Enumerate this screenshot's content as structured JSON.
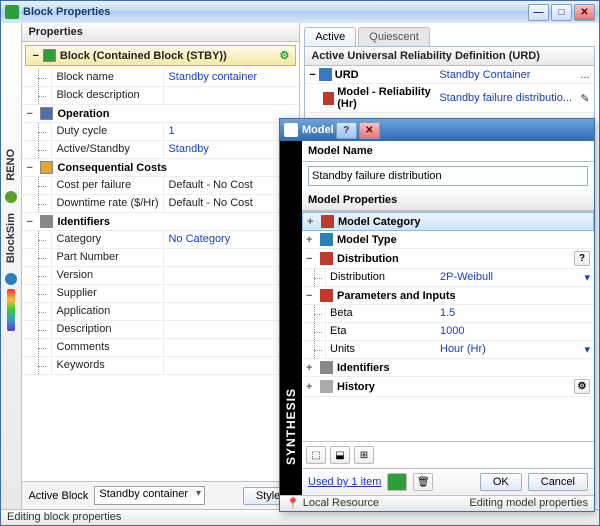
{
  "window": {
    "title": "Block Properties"
  },
  "sidebar": {
    "labels": [
      "RENO",
      "BlockSim"
    ],
    "dot_colors": [
      "#5aa02c",
      "#2c7fb8",
      "#d1495b"
    ]
  },
  "properties": {
    "header": "Properties",
    "block": {
      "title": "Block (Contained Block (STBY))",
      "icon_color": "#2e9e3a",
      "rows": [
        {
          "k": "Block name",
          "v": "Standby container"
        },
        {
          "k": "Block description",
          "v": ""
        }
      ]
    },
    "operation": {
      "title": "Operation",
      "icon_color": "#4a6fb3",
      "rows": [
        {
          "k": "Duty cycle",
          "v": "1"
        },
        {
          "k": "Active/Standby",
          "v": "Standby"
        }
      ]
    },
    "costs": {
      "title": "Consequential Costs",
      "icon_color": "#e0a62e",
      "rows": [
        {
          "k": "Cost per failure",
          "v": "Default - No Cost",
          "dark": true
        },
        {
          "k": "Downtime rate ($/Hr)",
          "v": "Default - No Cost",
          "dark": true
        }
      ]
    },
    "identifiers": {
      "title": "Identifiers",
      "icon_color": "#888888",
      "rows": [
        {
          "k": "Category",
          "v": "No Category"
        },
        {
          "k": "Part Number",
          "v": ""
        },
        {
          "k": "Version",
          "v": ""
        },
        {
          "k": "Supplier",
          "v": ""
        },
        {
          "k": "Application",
          "v": ""
        },
        {
          "k": "Description",
          "v": ""
        },
        {
          "k": "Comments",
          "v": ""
        },
        {
          "k": "Keywords",
          "v": ""
        }
      ]
    },
    "footer": {
      "label": "Active Block",
      "combo": "Standby container",
      "style_btn": "Style"
    }
  },
  "right": {
    "tabs": [
      "Active",
      "Quiescent"
    ],
    "active_tab": 0,
    "urd_header": "Active Universal Reliability Definition (URD)",
    "urd": {
      "k": "URD",
      "v": "Standby Container",
      "icon_color": "#3b78c4",
      "ellipsis": "..."
    },
    "model_row": {
      "k": "Model - Reliability (Hr)",
      "v": "Standby failure distributio...",
      "icon_color": "#c0392b"
    }
  },
  "model": {
    "title": "Model",
    "name_label": "Model Name",
    "name_value": "Standby failure distribution",
    "props_header": "Model Properties",
    "groups": {
      "category": {
        "title": "Model Category",
        "icon_color": "#c0392b"
      },
      "type": {
        "title": "Model Type",
        "icon_color": "#2c7fb8"
      },
      "distribution": {
        "title": "Distribution",
        "icon_color": "#c0392b",
        "rows": [
          {
            "k": "Distribution",
            "v": "2P-Weibull",
            "dropdown": true
          }
        ]
      },
      "params": {
        "title": "Parameters and Inputs",
        "icon_color": "#c0392b",
        "rows": [
          {
            "k": "Beta",
            "v": "1.5"
          },
          {
            "k": "Eta",
            "v": "1000"
          },
          {
            "k": "Units",
            "v": "Hour (Hr)",
            "dropdown": true
          }
        ]
      },
      "identifiers": {
        "title": "Identifiers",
        "icon_color": "#888888"
      },
      "history": {
        "title": "History",
        "icon_color": "#aaaaaa",
        "gear": true
      }
    },
    "used_by": "Used by 1 item",
    "ok": "OK",
    "cancel": "Cancel",
    "status_left": "Local Resource",
    "status_right": "Editing model properties",
    "sidebar_label": "SYNTHESIS",
    "help_badge": "?"
  },
  "status": "Editing block properties"
}
